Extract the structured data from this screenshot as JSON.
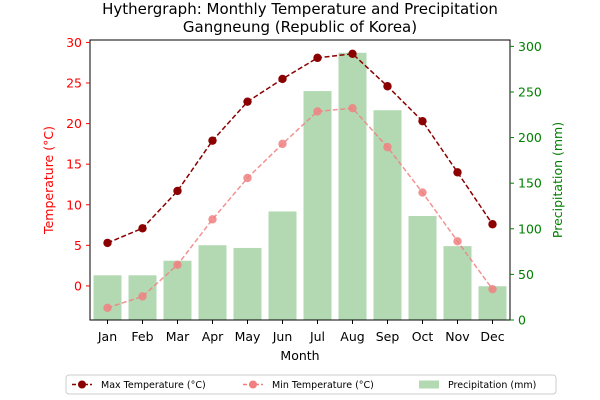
{
  "chart_data": {
    "type": "line+bar",
    "title_line1": "Hythergraph: Monthly Temperature and Precipitation",
    "title_line2": "Gangneung (Republic of Korea)",
    "xlabel": "Month",
    "ylabel_left": "Temperature (°C)",
    "ylabel_right": "Precipitation (mm)",
    "categories": [
      "Jan",
      "Feb",
      "Mar",
      "Apr",
      "May",
      "Jun",
      "Jul",
      "Aug",
      "Sep",
      "Oct",
      "Nov",
      "Dec"
    ],
    "ylim_left": [
      -4.2,
      30.3
    ],
    "yticks_left": [
      0,
      5,
      10,
      15,
      20,
      25,
      30
    ],
    "ylim_right": [
      0,
      307
    ],
    "yticks_right": [
      0,
      50,
      100,
      150,
      200,
      250,
      300
    ],
    "series": [
      {
        "name": "Max Temperature (°C)",
        "kind": "line",
        "color": "#8b0000",
        "values": [
          5.3,
          7.1,
          11.7,
          17.9,
          22.7,
          25.5,
          28.1,
          28.6,
          24.6,
          20.3,
          14.0,
          7.6
        ]
      },
      {
        "name": "Min Temperature (°C)",
        "kind": "line",
        "color": "#f08080",
        "values": [
          -2.7,
          -1.3,
          2.6,
          8.2,
          13.3,
          17.5,
          21.5,
          21.9,
          17.1,
          11.5,
          5.5,
          -0.4
        ]
      },
      {
        "name": "Precipitation (mm)",
        "kind": "bar",
        "color": "#b3d9b3",
        "values": [
          49,
          49,
          65,
          82,
          79,
          119,
          251,
          293,
          230,
          114,
          81,
          37
        ]
      }
    ],
    "legend_position": "bottom",
    "grid": false
  }
}
